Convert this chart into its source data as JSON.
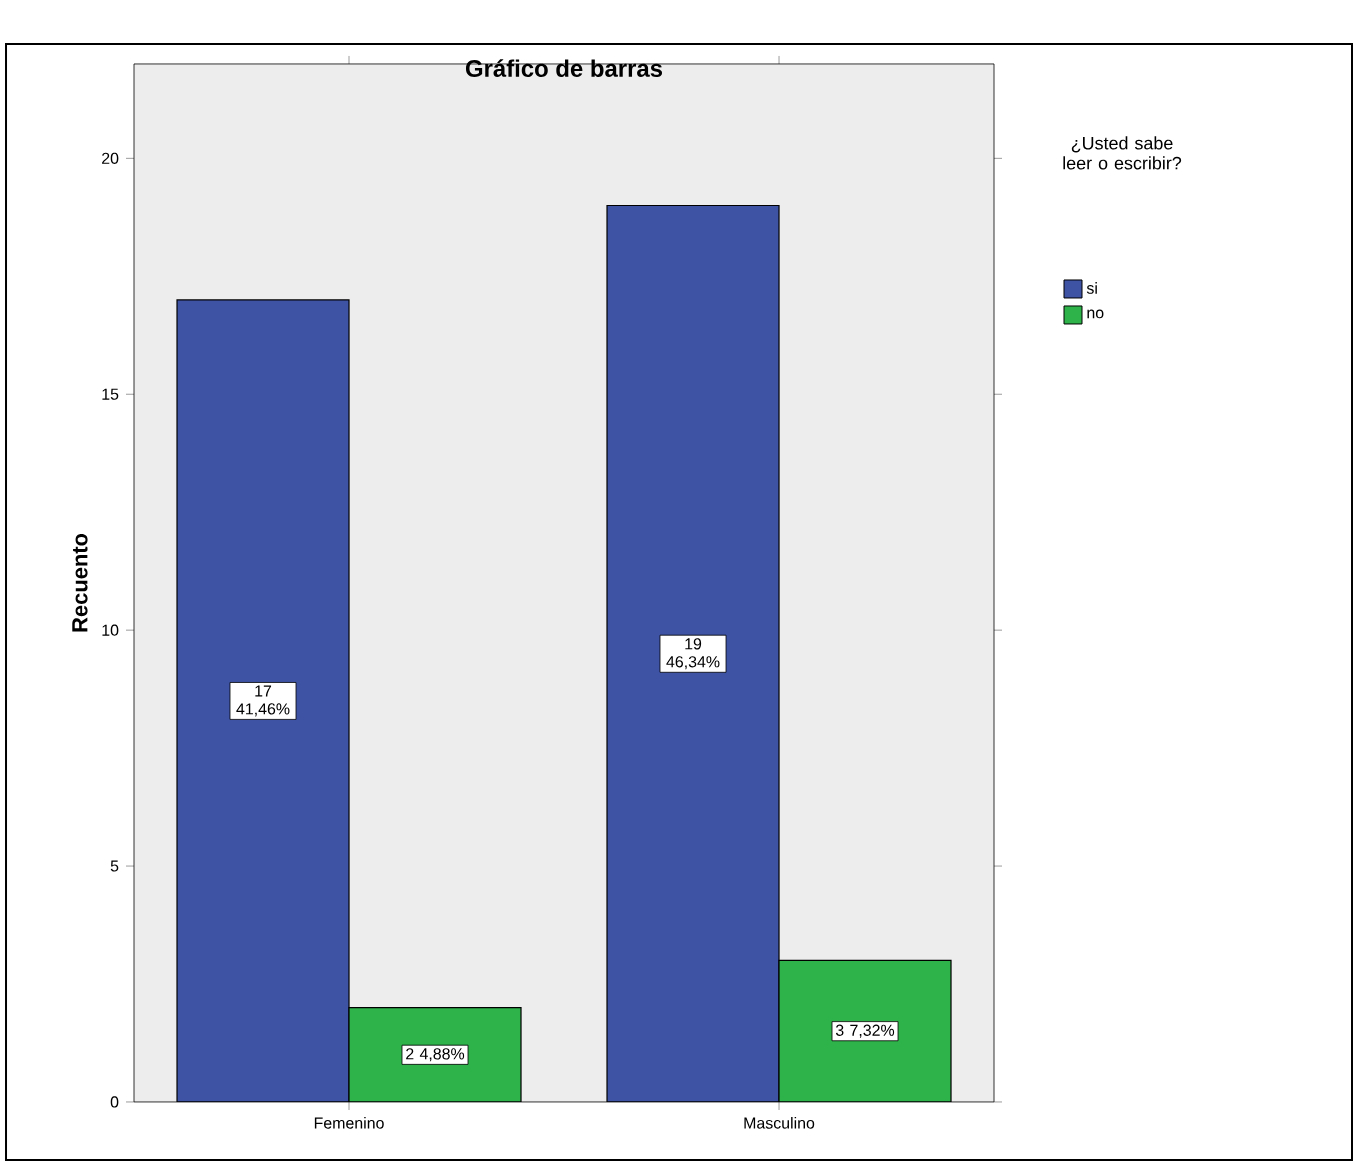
{
  "chart_data": {
    "type": "bar",
    "title": "Gráfico de barras",
    "ylabel": "Recuento",
    "legend_title": "¿Usted sabe leer o escribir?",
    "categories": [
      "Femenino",
      "Masculino"
    ],
    "series": [
      {
        "name": "si",
        "color": "#3e53a4",
        "values": [
          17,
          19
        ],
        "value_labels": [
          "17 41,46%",
          "19 46,34%"
        ]
      },
      {
        "name": "no",
        "color": "#2db34a",
        "values": [
          2,
          3
        ],
        "value_labels": [
          "2 4,88%",
          "3 7,32%"
        ]
      }
    ],
    "ylim": [
      0,
      22
    ],
    "yticks": [
      0,
      5,
      10,
      15,
      20
    ],
    "legend": "right"
  }
}
